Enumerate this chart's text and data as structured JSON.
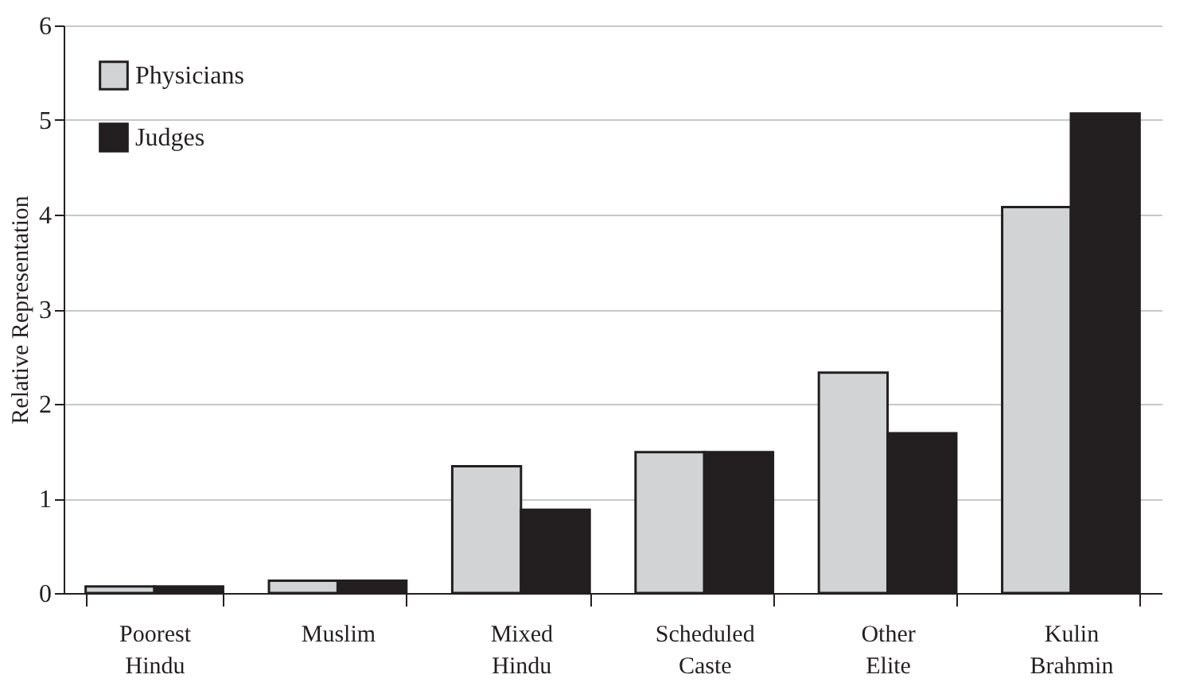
{
  "chart_data": {
    "type": "bar",
    "ylabel": "Relative Representation",
    "categories": [
      "Poorest Hindu",
      "Muslim",
      "Mixed Hindu",
      "Scheduled Caste",
      "Other Elite",
      "Kulin Brahmin"
    ],
    "series": [
      {
        "name": "Physicians",
        "color": "#d1d3d4",
        "values": [
          0.07,
          0.13,
          1.34,
          1.49,
          2.33,
          4.08
        ]
      },
      {
        "name": "Judges",
        "color": "#231f20",
        "values": [
          0.07,
          0.13,
          0.88,
          1.49,
          1.69,
          5.07
        ]
      }
    ],
    "ylim": [
      0,
      6
    ],
    "yticks": [
      0,
      1,
      2,
      3,
      4,
      5,
      6
    ],
    "grid": "y",
    "legend": "top left"
  }
}
